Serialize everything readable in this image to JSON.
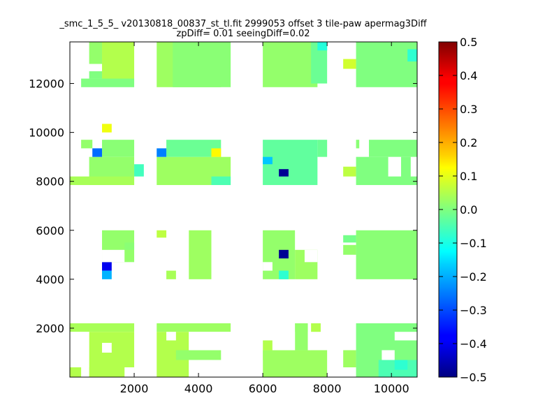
{
  "chart_data": {
    "type": "heatmap",
    "title_lines": [
      "_smc_1_5_5_ v20130818_00837_st_tl.fit 2999053 offset 3 tile-paw apermag3Diff",
      "zpDiff= 0.01 seeingDiff=0.02"
    ],
    "xlabel": "",
    "ylabel": "",
    "xlim": [
      0,
      10800
    ],
    "ylim": [
      0,
      13700
    ],
    "x_ticks": [
      2000,
      4000,
      6000,
      8000,
      10000
    ],
    "y_ticks": [
      2000,
      4000,
      6000,
      8000,
      10000,
      12000
    ],
    "grid": false,
    "colorbar": {
      "min": -0.5,
      "max": 0.5,
      "ticks": [
        0.5,
        0.4,
        0.3,
        0.2,
        0.1,
        0.0,
        -0.1,
        -0.2,
        -0.3,
        -0.4,
        -0.5
      ],
      "tick_labels": [
        "0.5",
        "0.4",
        "0.3",
        "0.2",
        "0.1",
        "0.0",
        "−0.1",
        "−0.2",
        "−0.3",
        "−0.4",
        "−0.5"
      ],
      "colormap": "jet"
    },
    "bin_size": 340,
    "base_value": 0.0,
    "cells": [
      {
        "x0": 600,
        "y0": 12800,
        "x1": 1000,
        "y1": 13700,
        "v": 0.02
      },
      {
        "x0": 1000,
        "y0": 12000,
        "x1": 2000,
        "y1": 13700,
        "v": 0.05
      },
      {
        "x0": 350,
        "y0": 11850,
        "x1": 2000,
        "y1": 12200,
        "v": 0.0
      },
      {
        "x0": 600,
        "y0": 12200,
        "x1": 1000,
        "y1": 12500,
        "v": 0.0
      },
      {
        "x0": 2700,
        "y0": 11850,
        "x1": 4700,
        "y1": 13700,
        "v": 0.03
      },
      {
        "x0": 3200,
        "y0": 11850,
        "x1": 5000,
        "y1": 13700,
        "v": 0.01
      },
      {
        "x0": 6000,
        "y0": 11850,
        "x1": 7700,
        "y1": 13700,
        "v": 0.02
      },
      {
        "x0": 7500,
        "y0": 12000,
        "x1": 8000,
        "y1": 13700,
        "v": -0.02
      },
      {
        "x0": 8900,
        "y0": 11850,
        "x1": 10800,
        "y1": 13700,
        "v": 0.0
      },
      {
        "x0": 8500,
        "y0": 12600,
        "x1": 8900,
        "y1": 13000,
        "v": 0.08
      },
      {
        "x0": 7700,
        "y0": 13350,
        "x1": 8000,
        "y1": 13700,
        "v": -0.09
      },
      {
        "x0": 10500,
        "y0": 12900,
        "x1": 10800,
        "y1": 13400,
        "v": -0.08
      },
      {
        "x0": 1000,
        "y0": 10000,
        "x1": 1300,
        "y1": 10350,
        "v": 0.11
      },
      {
        "x0": 350,
        "y0": 9350,
        "x1": 700,
        "y1": 9700,
        "v": 0.02
      },
      {
        "x0": 1000,
        "y0": 9000,
        "x1": 2000,
        "y1": 9700,
        "v": 0.01
      },
      {
        "x0": 600,
        "y0": 7850,
        "x1": 2000,
        "y1": 9000,
        "v": 0.02
      },
      {
        "x0": 0,
        "y0": 7850,
        "x1": 2000,
        "y1": 8200,
        "v": 0.04
      },
      {
        "x0": 2000,
        "y0": 8200,
        "x1": 2300,
        "y1": 8700,
        "v": -0.06
      },
      {
        "x0": 700,
        "y0": 9000,
        "x1": 1000,
        "y1": 9350,
        "v": -0.27
      },
      {
        "x0": 2700,
        "y0": 7850,
        "x1": 5000,
        "y1": 9000,
        "v": 0.03
      },
      {
        "x0": 3000,
        "y0": 9000,
        "x1": 4700,
        "y1": 9700,
        "v": -0.02
      },
      {
        "x0": 2700,
        "y0": 9000,
        "x1": 3000,
        "y1": 9350,
        "v": -0.25
      },
      {
        "x0": 4400,
        "y0": 9000,
        "x1": 4700,
        "y1": 9350,
        "v": 0.13
      },
      {
        "x0": 4400,
        "y0": 7850,
        "x1": 5000,
        "y1": 8200,
        "v": -0.05
      },
      {
        "x0": 6000,
        "y0": 7850,
        "x1": 7700,
        "y1": 9700,
        "v": -0.03
      },
      {
        "x0": 7700,
        "y0": 9000,
        "x1": 8000,
        "y1": 9700,
        "v": -0.02
      },
      {
        "x0": 6000,
        "y0": 8700,
        "x1": 6300,
        "y1": 9000,
        "v": -0.18
      },
      {
        "x0": 6500,
        "y0": 8200,
        "x1": 6800,
        "y1": 8500,
        "v": -0.48
      },
      {
        "x0": 8500,
        "y0": 8200,
        "x1": 8900,
        "y1": 8600,
        "v": 0.06
      },
      {
        "x0": 8900,
        "y0": 7850,
        "x1": 10800,
        "y1": 9000,
        "v": 0.0
      },
      {
        "x0": 9300,
        "y0": 9000,
        "x1": 10800,
        "y1": 9700,
        "v": 0.0
      },
      {
        "x0": 8900,
        "y0": 9350,
        "x1": 9000,
        "y1": 9700,
        "v": 0.01
      },
      {
        "x0": 1000,
        "y0": 4700,
        "x1": 2000,
        "y1": 6000,
        "v": 0.02
      },
      {
        "x0": 1700,
        "y0": 5200,
        "x1": 2000,
        "y1": 5500,
        "v": 0.01
      },
      {
        "x0": 2700,
        "y0": 5700,
        "x1": 3000,
        "y1": 6000,
        "v": 0.06
      },
      {
        "x0": 1000,
        "y0": 4350,
        "x1": 1300,
        "y1": 4700,
        "v": -0.39
      },
      {
        "x0": 1000,
        "y0": 4000,
        "x1": 1300,
        "y1": 4350,
        "v": -0.2
      },
      {
        "x0": 3700,
        "y0": 4000,
        "x1": 4400,
        "y1": 6000,
        "v": 0.03
      },
      {
        "x0": 3000,
        "y0": 4000,
        "x1": 3300,
        "y1": 4350,
        "v": 0.04
      },
      {
        "x0": 6000,
        "y0": 4000,
        "x1": 7000,
        "y1": 6000,
        "v": 0.02
      },
      {
        "x0": 7000,
        "y0": 4000,
        "x1": 7700,
        "y1": 5200,
        "v": 0.03
      },
      {
        "x0": 6500,
        "y0": 4850,
        "x1": 6800,
        "y1": 5200,
        "v": -0.48
      },
      {
        "x0": 6500,
        "y0": 4000,
        "x1": 6800,
        "y1": 4350,
        "v": -0.08
      },
      {
        "x0": 8500,
        "y0": 5000,
        "x1": 8900,
        "y1": 5400,
        "v": 0.02
      },
      {
        "x0": 8900,
        "y0": 4000,
        "x1": 10800,
        "y1": 6000,
        "v": 0.01
      },
      {
        "x0": 8500,
        "y0": 5500,
        "x1": 8900,
        "y1": 5800,
        "v": -0.01
      },
      {
        "x0": 0,
        "y0": 1850,
        "x1": 2000,
        "y1": 2200,
        "v": 0.04
      },
      {
        "x0": 600,
        "y0": 0,
        "x1": 2000,
        "y1": 1850,
        "v": 0.05
      },
      {
        "x0": 0,
        "y0": 0,
        "x1": 350,
        "y1": 400,
        "v": 0.05
      },
      {
        "x0": 2700,
        "y0": 1850,
        "x1": 5000,
        "y1": 2200,
        "v": 0.03
      },
      {
        "x0": 2700,
        "y0": 0,
        "x1": 3700,
        "y1": 1850,
        "v": 0.05
      },
      {
        "x0": 3300,
        "y0": 700,
        "x1": 4700,
        "y1": 1100,
        "v": 0.02
      },
      {
        "x0": 4400,
        "y0": 400,
        "x1": 4700,
        "y1": 700,
        "v": 0.01
      },
      {
        "x0": 6000,
        "y0": 0,
        "x1": 8000,
        "y1": 1100,
        "v": 0.03
      },
      {
        "x0": 6000,
        "y0": 1100,
        "x1": 6300,
        "y1": 1500,
        "v": 0.05
      },
      {
        "x0": 7000,
        "y0": 1100,
        "x1": 7400,
        "y1": 2200,
        "v": 0.02
      },
      {
        "x0": 7500,
        "y0": 1850,
        "x1": 7800,
        "y1": 2200,
        "v": 0.05
      },
      {
        "x0": 8500,
        "y0": 400,
        "x1": 8900,
        "y1": 1100,
        "v": 0.03
      },
      {
        "x0": 8900,
        "y0": 0,
        "x1": 10800,
        "y1": 2200,
        "v": 0.0
      },
      {
        "x0": 9600,
        "y0": 0,
        "x1": 10800,
        "y1": 700,
        "v": -0.05
      },
      {
        "x0": 10100,
        "y0": 300,
        "x1": 10500,
        "y1": 700,
        "v": -0.08
      }
    ],
    "blank_cells": [
      {
        "x0": 0,
        "y0": 400,
        "x1": 600,
        "y1": 1850
      },
      {
        "x0": 1000,
        "y0": 1000,
        "x1": 1300,
        "y1": 1400
      },
      {
        "x0": 1700,
        "y0": 0,
        "x1": 2000,
        "y1": 400
      },
      {
        "x0": 3000,
        "y0": 1500,
        "x1": 3300,
        "y1": 1850
      },
      {
        "x0": 3700,
        "y0": 1100,
        "x1": 6000,
        "y1": 1850
      },
      {
        "x0": 4000,
        "y0": 0,
        "x1": 6000,
        "y1": 700
      },
      {
        "x0": 3700,
        "y0": 0,
        "x1": 4400,
        "y1": 700
      },
      {
        "x0": 6300,
        "y0": 1100,
        "x1": 7000,
        "y1": 1850
      },
      {
        "x0": 7400,
        "y0": 1100,
        "x1": 7500,
        "y1": 1850
      },
      {
        "x0": 9700,
        "y0": 700,
        "x1": 10100,
        "y1": 1100
      },
      {
        "x0": 10100,
        "y0": 1500,
        "x1": 10800,
        "y1": 1850
      },
      {
        "x0": 6000,
        "y0": 4350,
        "x1": 6300,
        "y1": 4700
      },
      {
        "x0": 7300,
        "y0": 4700,
        "x1": 7700,
        "y1": 5200
      },
      {
        "x0": 1000,
        "y0": 4700,
        "x1": 1700,
        "y1": 5200
      },
      {
        "x0": 9900,
        "y0": 8200,
        "x1": 10300,
        "y1": 9000
      },
      {
        "x0": 10600,
        "y0": 8200,
        "x1": 10800,
        "y1": 9000
      }
    ]
  }
}
